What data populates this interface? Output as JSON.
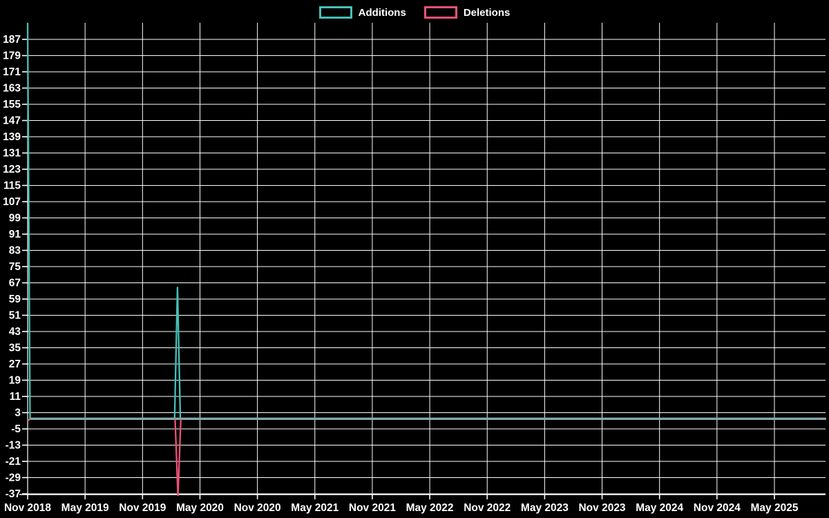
{
  "chart_data": {
    "type": "line",
    "title": "",
    "legend": [
      {
        "label": "Additions",
        "color": "#45c0b8"
      },
      {
        "label": "Deletions",
        "color": "#ee5276"
      }
    ],
    "x_axis": {
      "unit": "months since Nov 2018",
      "tick_labels": [
        "Nov 2018",
        "May 2019",
        "Nov 2019",
        "May 2020",
        "Nov 2020",
        "May 2021",
        "Nov 2021",
        "May 2022",
        "Nov 2022",
        "May 2023",
        "Nov 2023",
        "May 2024",
        "Nov 2024",
        "May 2025"
      ],
      "tick_positions_months": [
        0,
        6,
        12,
        18,
        24,
        30,
        36,
        42,
        48,
        54,
        60,
        66,
        72,
        78
      ],
      "range_months": [
        0,
        83.4
      ]
    },
    "y_axis": {
      "tick_values": [
        187,
        179,
        171,
        163,
        155,
        147,
        139,
        131,
        123,
        115,
        107,
        99,
        91,
        83,
        75,
        67,
        59,
        51,
        43,
        35,
        27,
        19,
        11,
        3,
        -5,
        -13,
        -21,
        -29,
        -37
      ],
      "tick_step": 8,
      "range": [
        -38,
        195
      ]
    },
    "series": [
      {
        "name": "Additions",
        "color": "#45c0b8",
        "flat_value": 0,
        "segments": [
          [
            [
              0,
              195
            ],
            [
              0.25,
              0
            ]
          ],
          [
            [
              15.35,
              0
            ],
            [
              15.65,
              65
            ],
            [
              15.95,
              0
            ]
          ]
        ]
      },
      {
        "name": "Deletions",
        "color": "#ee5276",
        "flat_value": 0,
        "segments": [
          [
            [
              0,
              -1
            ],
            [
              0.3,
              0
            ]
          ],
          [
            [
              15.4,
              0
            ],
            [
              15.7,
              -38
            ],
            [
              16.0,
              0
            ]
          ]
        ]
      }
    ],
    "overlap_baseline": {
      "value": 0,
      "from_month": 0.2,
      "to_month": 83.4,
      "color": "#85a9ae"
    },
    "grid": {
      "show": true,
      "color": "#ffffff",
      "horizontal_step": 8,
      "vertical_step_months": 6
    },
    "background_color": "#000000",
    "text_color": "#ffffff"
  }
}
